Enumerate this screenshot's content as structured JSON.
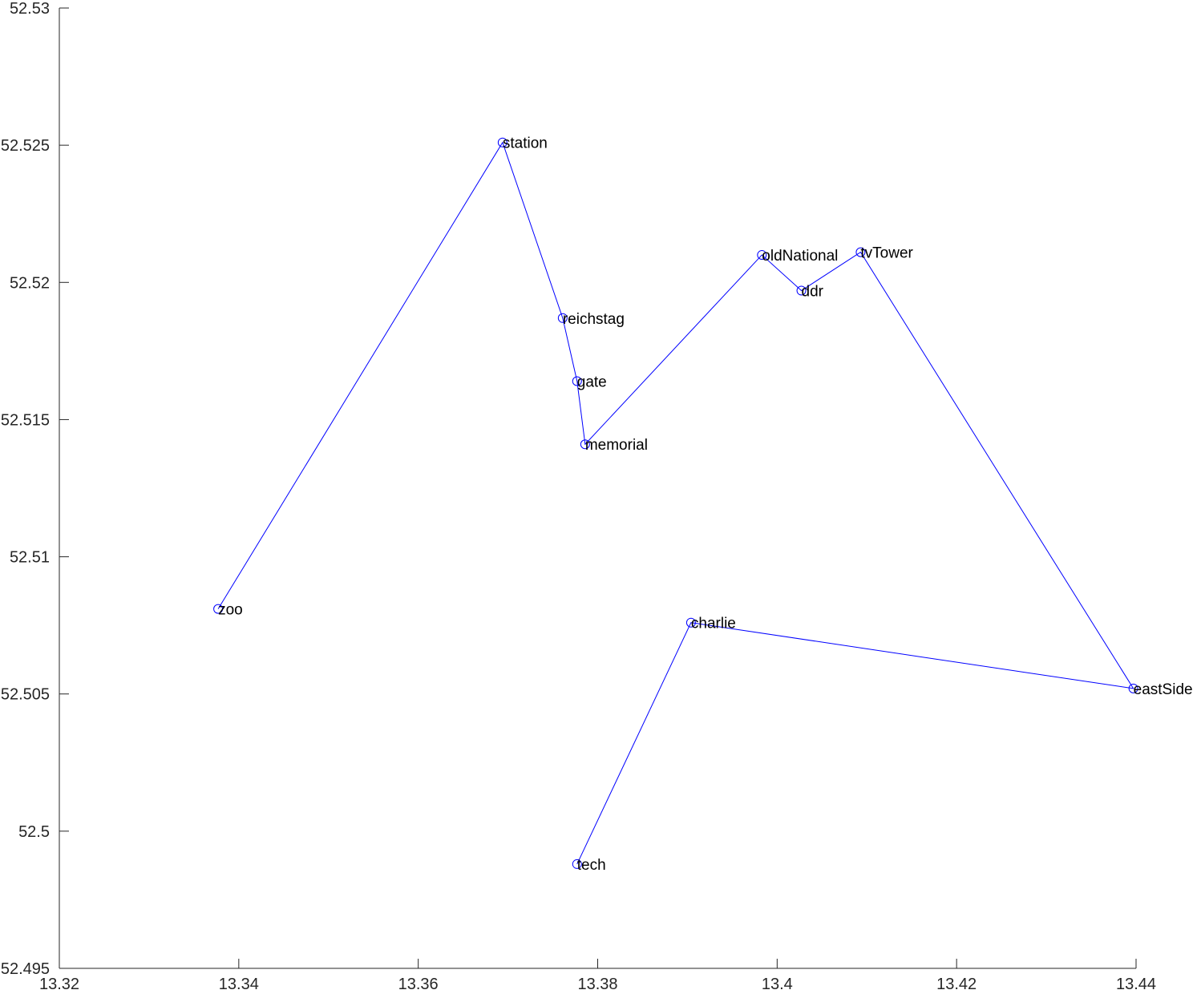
{
  "chart_data": {
    "type": "line",
    "title": "",
    "xlabel": "",
    "ylabel": "",
    "xlim": [
      13.32,
      13.44
    ],
    "ylim": [
      52.495,
      52.53
    ],
    "x_ticks": [
      "13.32",
      "13.34",
      "13.36",
      "13.38",
      "13.4",
      "13.42",
      "13.44"
    ],
    "y_ticks": [
      "52.495",
      "52.5",
      "52.505",
      "52.51",
      "52.515",
      "52.52",
      "52.525",
      "52.53"
    ],
    "grid": false,
    "legend": "none",
    "line_color": "#0000ff",
    "marker": "circle",
    "points": [
      {
        "label": "zoo",
        "x": 13.3377,
        "y": 52.5081
      },
      {
        "label": "station",
        "x": 13.3694,
        "y": 52.5251
      },
      {
        "label": "reichstag",
        "x": 13.3761,
        "y": 52.5187
      },
      {
        "label": "gate",
        "x": 13.3777,
        "y": 52.5164
      },
      {
        "label": "memorial",
        "x": 13.3786,
        "y": 52.5141
      },
      {
        "label": "oldNational",
        "x": 13.3983,
        "y": 52.521
      },
      {
        "label": "ddr",
        "x": 13.4027,
        "y": 52.5197
      },
      {
        "label": "tvTower",
        "x": 13.4093,
        "y": 52.5211
      },
      {
        "label": "eastSide",
        "x": 13.4397,
        "y": 52.5052
      },
      {
        "label": "charlie",
        "x": 13.3904,
        "y": 52.5076
      },
      {
        "label": "tech",
        "x": 13.3777,
        "y": 52.4988
      }
    ]
  }
}
